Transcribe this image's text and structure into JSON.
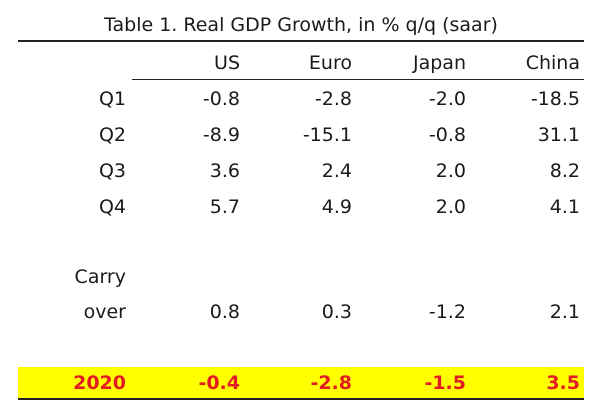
{
  "title": "Table 1. Real GDP Growth, in % q/q (saar)",
  "columns": [
    "US",
    "Euro",
    "Japan",
    "China"
  ],
  "rows": [
    {
      "label": "Q1",
      "values": [
        "-0.8",
        "-2.8",
        "-2.0",
        "-18.5"
      ]
    },
    {
      "label": "Q2",
      "values": [
        "-8.9",
        "-15.1",
        "-0.8",
        "31.1"
      ]
    },
    {
      "label": "Q3",
      "values": [
        "3.6",
        "2.4",
        "2.0",
        "8.2"
      ]
    },
    {
      "label": "Q4",
      "values": [
        "5.7",
        "4.9",
        "2.0",
        "4.1"
      ]
    }
  ],
  "carryover": {
    "label_line1": "Carry",
    "label_line2": "over",
    "values": [
      "0.8",
      "0.3",
      "-1.2",
      "2.1"
    ]
  },
  "annual": {
    "label": "2020",
    "values": [
      "-0.4",
      "-2.8",
      "-1.5",
      "3.5"
    ]
  },
  "colors": {
    "highlight": "#ffff00",
    "accent": "#e31b23"
  }
}
